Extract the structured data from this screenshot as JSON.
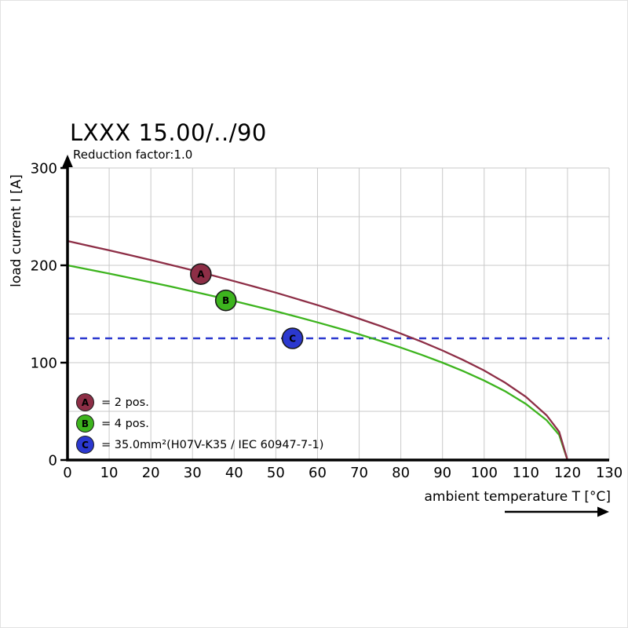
{
  "title": "LXXX 15.00/../90",
  "subtitle": "Reduction factor:1.0",
  "axes": {
    "x_label": "ambient temperature T [°C]",
    "y_label": "load current I [A]"
  },
  "chart_data": {
    "type": "line",
    "title": "LXXX 15.00/../90",
    "subtitle": "Reduction factor:1.0",
    "xlabel": "ambient temperature T [°C]",
    "ylabel": "load current I [A]",
    "xlim": [
      0,
      130
    ],
    "ylim": [
      0,
      300
    ],
    "x_ticks": [
      0,
      10,
      20,
      30,
      40,
      50,
      60,
      70,
      80,
      90,
      100,
      110,
      120,
      130
    ],
    "y_ticks": [
      0,
      100,
      200,
      300
    ],
    "x_grid_step": 10,
    "y_grid_step": 50,
    "grid": true,
    "grid_color": "#c9c9c9",
    "legend_position": "lower-left-inside",
    "series": [
      {
        "name": "A",
        "label": "= 2 pos.",
        "color": "#8d2e46",
        "dash": false,
        "marker_at": {
          "x": 32,
          "y": 191
        },
        "points": [
          [
            0,
            225
          ],
          [
            5,
            220.2
          ],
          [
            10,
            215.4
          ],
          [
            15,
            210.5
          ],
          [
            20,
            205.4
          ],
          [
            25,
            200.2
          ],
          [
            30,
            194.9
          ],
          [
            35,
            189.4
          ],
          [
            40,
            183.7
          ],
          [
            45,
            177.9
          ],
          [
            50,
            171.9
          ],
          [
            55,
            165.6
          ],
          [
            60,
            159.1
          ],
          [
            65,
            152.3
          ],
          [
            70,
            145.2
          ],
          [
            75,
            137.8
          ],
          [
            80,
            129.9
          ],
          [
            85,
            121.5
          ],
          [
            90,
            112.5
          ],
          [
            95,
            102.7
          ],
          [
            100,
            91.9
          ],
          [
            105,
            79.5
          ],
          [
            110,
            65.0
          ],
          [
            115,
            45.9
          ],
          [
            118,
            29.0
          ],
          [
            120,
            0
          ]
        ]
      },
      {
        "name": "B",
        "label": "= 4 pos.",
        "color": "#3db41e",
        "dash": false,
        "marker_at": {
          "x": 38,
          "y": 164
        },
        "points": [
          [
            0,
            200
          ],
          [
            5,
            195.7
          ],
          [
            10,
            191.5
          ],
          [
            15,
            187.1
          ],
          [
            20,
            182.6
          ],
          [
            25,
            178.0
          ],
          [
            30,
            173.2
          ],
          [
            35,
            168.3
          ],
          [
            40,
            163.3
          ],
          [
            45,
            158.1
          ],
          [
            50,
            152.8
          ],
          [
            55,
            147.2
          ],
          [
            60,
            141.4
          ],
          [
            65,
            135.4
          ],
          [
            70,
            129.1
          ],
          [
            75,
            122.5
          ],
          [
            80,
            115.5
          ],
          [
            85,
            108.0
          ],
          [
            90,
            100.0
          ],
          [
            95,
            91.3
          ],
          [
            100,
            81.6
          ],
          [
            105,
            70.7
          ],
          [
            110,
            57.7
          ],
          [
            115,
            40.8
          ],
          [
            118,
            25.8
          ],
          [
            120,
            0
          ]
        ]
      },
      {
        "name": "C",
        "label": "= 35.0mm²(H07V-K35 / IEC 60947-7-1)",
        "color": "#2b38cf",
        "dash": true,
        "value": 125,
        "marker_at": {
          "x": 54,
          "y": 125
        },
        "points": [
          [
            0,
            125
          ],
          [
            130,
            125
          ]
        ]
      }
    ]
  }
}
